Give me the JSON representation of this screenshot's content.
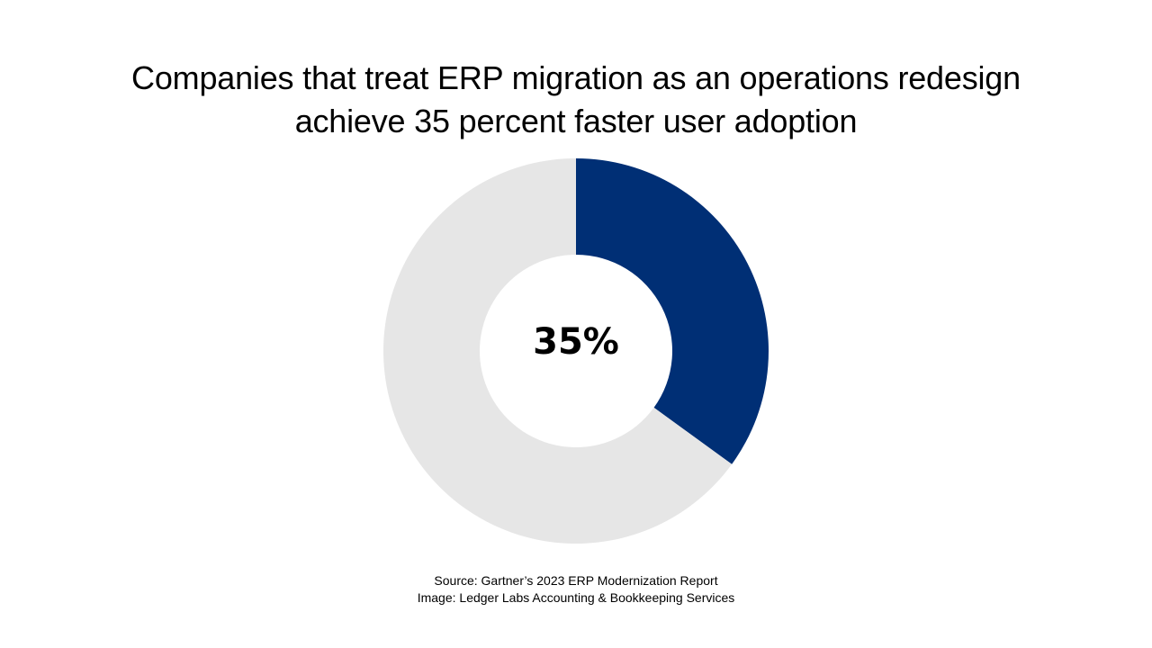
{
  "chart_data": {
    "type": "pie",
    "title_lines": [
      "Companies that treat ERP migration as an operations redesign",
      "achieve 35 percent faster user adoption"
    ],
    "center_label": "35%",
    "slices": [
      {
        "value": 35,
        "color": "#002f75"
      },
      {
        "value": 65,
        "color": "#e6e6e6"
      }
    ]
  },
  "footer": {
    "source": "Source: Gartner’s 2023 ERP Modernization Report",
    "image_credit": "Image: Ledger Labs Accounting & Bookkeeping Services"
  }
}
